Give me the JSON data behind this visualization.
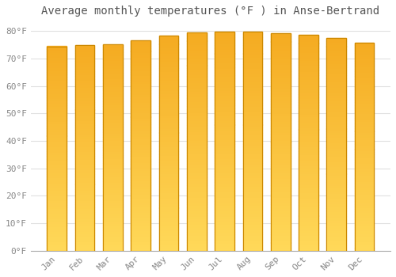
{
  "months": [
    "Jan",
    "Feb",
    "Mar",
    "Apr",
    "May",
    "Jun",
    "Jul",
    "Aug",
    "Sep",
    "Oct",
    "Nov",
    "Dec"
  ],
  "values": [
    74.5,
    74.8,
    75.3,
    76.6,
    78.3,
    79.5,
    79.9,
    79.9,
    79.2,
    78.6,
    77.4,
    75.9
  ],
  "bar_color_top": "#F5A800",
  "bar_color_bottom": "#FFD060",
  "bar_edge_color": "#CC8800",
  "title": "Average monthly temperatures (°F ) in Anse-Bertrand",
  "ylim": [
    0,
    83
  ],
  "yticks": [
    0,
    10,
    20,
    30,
    40,
    50,
    60,
    70,
    80
  ],
  "ytick_labels": [
    "0°F",
    "10°F",
    "20°F",
    "30°F",
    "40°F",
    "50°F",
    "60°F",
    "70°F",
    "80°F"
  ],
  "background_color": "#FFFFFF",
  "grid_color": "#E0E0E0",
  "title_fontsize": 10,
  "tick_fontsize": 8,
  "bar_width": 0.7
}
